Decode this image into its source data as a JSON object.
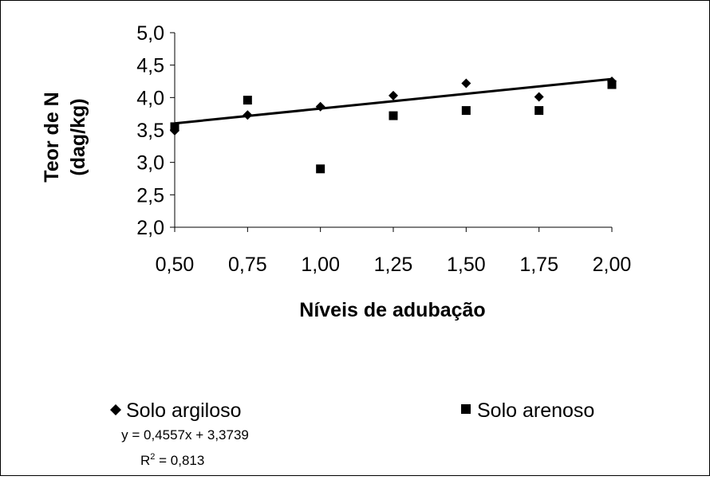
{
  "chart_data": {
    "type": "scatter",
    "title": "",
    "xlabel": "Níveis de adubação",
    "ylabel": [
      "Teor de N",
      "(dag/kg)"
    ],
    "xlim": [
      0.5,
      2.0
    ],
    "ylim": [
      2.0,
      5.0
    ],
    "x_ticks": [
      "0,50",
      "0,75",
      "1,00",
      "1,25",
      "1,50",
      "1,75",
      "2,00"
    ],
    "y_ticks": [
      "2,0",
      "2,5",
      "3,0",
      "3,5",
      "4,0",
      "4,5",
      "5,0"
    ],
    "grid": false,
    "legend_position": "bottom",
    "series": [
      {
        "name": "Solo argiloso",
        "marker": "diamond",
        "color": "#000000",
        "x": [
          0.5,
          0.75,
          1.0,
          1.25,
          1.5,
          1.75,
          2.0
        ],
        "y": [
          3.49,
          3.73,
          3.86,
          4.03,
          4.22,
          4.01,
          4.25
        ]
      },
      {
        "name": "Solo arenoso",
        "marker": "square",
        "color": "#000000",
        "x": [
          0.5,
          0.75,
          1.0,
          1.25,
          1.5,
          1.75,
          2.0
        ],
        "y": [
          3.55,
          3.96,
          2.9,
          3.72,
          3.8,
          3.8,
          4.2
        ]
      }
    ],
    "trendline": {
      "series": "Solo argiloso",
      "slope": 0.4557,
      "intercept": 3.3739,
      "x_range": [
        0.5,
        2.0
      ],
      "equation": "y = 0,4557x + 3,3739",
      "r2_prefix": "R",
      "r2_sup": "2",
      "r2_rest": " = 0,813"
    }
  }
}
